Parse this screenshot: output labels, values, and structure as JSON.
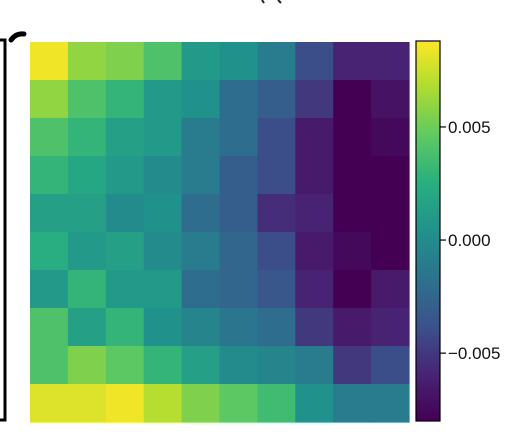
{
  "chart_data": {
    "type": "heatmap",
    "title": "",
    "xlabel": "",
    "ylabel": "",
    "grid": false,
    "colormap": "viridis",
    "rows": 10,
    "cols": 10,
    "values": [
      [
        0.0085,
        0.006,
        0.0055,
        0.004,
        0.001,
        0.0005,
        -0.001,
        -0.004,
        -0.006,
        -0.006
      ],
      [
        0.006,
        0.004,
        0.003,
        0.001,
        0.0005,
        -0.002,
        -0.003,
        -0.005,
        -0.008,
        -0.007
      ],
      [
        0.004,
        0.003,
        0.0015,
        0.001,
        -0.001,
        -0.002,
        -0.004,
        -0.0065,
        -0.0085,
        -0.0075
      ],
      [
        0.003,
        0.002,
        0.001,
        0.0,
        -0.001,
        -0.003,
        -0.004,
        -0.0065,
        -0.008,
        -0.008
      ],
      [
        0.0015,
        0.0015,
        0.0,
        0.0005,
        -0.002,
        -0.003,
        -0.0055,
        -0.006,
        -0.008,
        -0.008
      ],
      [
        0.0025,
        0.001,
        0.0015,
        0.0,
        -0.001,
        -0.0025,
        -0.004,
        -0.0065,
        -0.0075,
        -0.0085
      ],
      [
        0.001,
        0.003,
        0.001,
        0.001,
        -0.002,
        -0.0025,
        -0.0035,
        -0.006,
        -0.0085,
        -0.0065
      ],
      [
        0.004,
        0.0015,
        0.003,
        0.0005,
        -0.0005,
        -0.0015,
        -0.002,
        -0.005,
        -0.0065,
        -0.006
      ],
      [
        0.004,
        0.0055,
        0.0045,
        0.003,
        0.0015,
        0.0,
        -0.0005,
        -0.001,
        -0.005,
        -0.004
      ],
      [
        0.008,
        0.008,
        0.0085,
        0.007,
        0.0055,
        0.0045,
        0.0035,
        0.0005,
        -0.001,
        -0.001
      ]
    ],
    "colorbar": {
      "min": -0.008,
      "max": 0.0088,
      "ticks": [
        0.005,
        0.0,
        -0.005
      ],
      "tick_labels": [
        "0.005",
        "0.000",
        "−0.005"
      ]
    }
  }
}
